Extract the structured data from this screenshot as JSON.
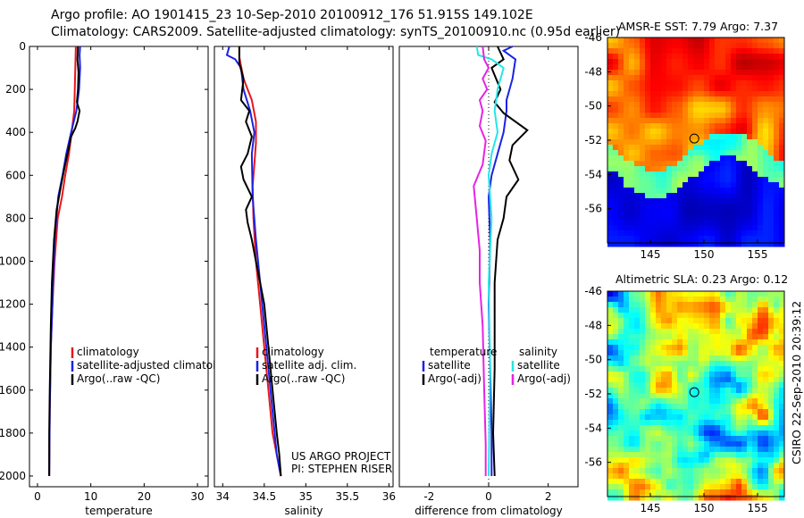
{
  "header": {
    "line1": "Argo profile: AO 1901415_23 10-Sep-2010 20100912_176 51.915S 149.102E",
    "line2": "Climatology: CARS2009. Satellite-adjusted climatology: synTS_20100910.nc (0.95d earlier)"
  },
  "credit": "CSIRO 22-Sep-2010 20:39:12",
  "colors": {
    "red": "#e8161a",
    "blue": "#1a22e6",
    "black": "#000000",
    "cyan": "#25e6e6",
    "magenta": "#e623e6"
  },
  "chart_data": [
    {
      "type": "line",
      "xlabel": "temperature",
      "xticks": [
        0,
        10,
        20,
        30
      ],
      "yticks": [
        0,
        200,
        400,
        600,
        800,
        1000,
        1200,
        1400,
        1600,
        1800,
        2000
      ],
      "xlim": [
        -1.5,
        32
      ],
      "ylim": [
        2050,
        0
      ],
      "legend": [
        "climatology",
        "satellite-adjusted climatology",
        "Argo(..raw -QC)"
      ],
      "series": [
        {
          "name": "climatology",
          "color": "red",
          "x": [
            7.2,
            7.1,
            7.0,
            6.9,
            6.4,
            5.9,
            5.2,
            4.6,
            3.8,
            3.2,
            2.8,
            2.5,
            2.3,
            2.2
          ],
          "y": [
            0,
            100,
            200,
            300,
            400,
            500,
            600,
            700,
            800,
            1000,
            1200,
            1400,
            1700,
            2000
          ]
        },
        {
          "name": "satellite-adjusted climatology",
          "color": "blue",
          "x": [
            8.0,
            7.9,
            8.0,
            7.8,
            7.3,
            6.3,
            5.4,
            4.7,
            3.9,
            3.2,
            2.8,
            2.5,
            2.3,
            2.2
          ],
          "y": [
            0,
            40,
            100,
            200,
            300,
            400,
            500,
            600,
            700,
            900,
            1200,
            1400,
            1700,
            2000
          ]
        },
        {
          "name": "Argo(..raw -QC)",
          "color": "black",
          "x": [
            7.6,
            7.5,
            7.7,
            7.6,
            7.4,
            7.9,
            7.5,
            7.1,
            6.3,
            5.8,
            5.1,
            4.4,
            3.6,
            3.1,
            2.7,
            2.5,
            2.3,
            2.2,
            2.2
          ],
          "y": [
            0,
            60,
            120,
            200,
            260,
            300,
            350,
            380,
            420,
            480,
            560,
            650,
            760,
            900,
            1100,
            1300,
            1600,
            1800,
            2000
          ]
        }
      ]
    },
    {
      "type": "line",
      "xlabel": "salinity",
      "xticks": [
        34,
        34.5,
        35,
        35.5,
        36
      ],
      "yticks": [],
      "xlim": [
        33.9,
        36.05
      ],
      "ylim": [
        2050,
        0
      ],
      "legend": [
        "climatology",
        "satellite adj. clim.",
        "Argo(..raw -QC)"
      ],
      "annotation": [
        "US ARGO PROJECT",
        "PI: STEPHEN RISER"
      ],
      "series": [
        {
          "name": "climatology",
          "color": "red",
          "x": [
            34.2,
            34.2,
            34.25,
            34.35,
            34.4,
            34.4,
            34.38,
            34.36,
            34.37,
            34.4,
            34.45,
            34.5,
            34.55,
            34.6,
            34.65,
            34.7
          ],
          "y": [
            0,
            50,
            150,
            250,
            350,
            450,
            550,
            650,
            800,
            1000,
            1200,
            1400,
            1600,
            1800,
            1900,
            2000
          ]
        },
        {
          "name": "satellite adj. clim.",
          "color": "blue",
          "x": [
            34.08,
            34.05,
            34.15,
            34.22,
            34.25,
            34.33,
            34.38,
            34.35,
            34.36,
            34.4,
            34.45,
            34.5,
            34.55,
            34.6,
            34.65,
            34.7
          ],
          "y": [
            0,
            40,
            60,
            100,
            200,
            300,
            400,
            500,
            700,
            900,
            1100,
            1300,
            1500,
            1700,
            1900,
            2000
          ]
        },
        {
          "name": "Argo(..raw -QC)",
          "color": "black",
          "x": [
            34.2,
            34.2,
            34.25,
            34.22,
            34.32,
            34.28,
            34.35,
            34.3,
            34.22,
            34.25,
            34.35,
            34.28,
            34.3,
            34.35,
            34.4,
            34.45,
            34.5,
            34.55,
            34.6,
            34.65,
            34.68,
            34.7
          ],
          "y": [
            0,
            80,
            150,
            250,
            300,
            350,
            420,
            500,
            560,
            620,
            700,
            760,
            820,
            900,
            1000,
            1100,
            1200,
            1400,
            1600,
            1800,
            1900,
            2000
          ]
        }
      ]
    },
    {
      "type": "line",
      "xlabel": "difference from climatology",
      "xticks": [
        -2,
        0,
        2
      ],
      "yticks": [],
      "xlim": [
        -3,
        3
      ],
      "ylim": [
        2050,
        0
      ],
      "legend": [
        "temperature",
        "satellite",
        "Argo(-adj)",
        "salinity",
        "satellite",
        "Argo(-adj)"
      ],
      "series": [
        {
          "name": "temperature satellite",
          "color": "blue",
          "x": [
            0.8,
            0.5,
            0.9,
            0.8,
            0.6,
            0.6,
            0.5,
            0.3,
            0.1,
            0.0,
            0.05,
            0.0,
            0.05,
            0.1,
            0.1
          ],
          "y": [
            0,
            20,
            60,
            150,
            250,
            300,
            400,
            500,
            600,
            700,
            900,
            1200,
            1500,
            1800,
            2000
          ]
        },
        {
          "name": "temperature Argo(-adj)",
          "color": "black",
          "x": [
            0.3,
            0.5,
            0.1,
            0.4,
            0.2,
            0.5,
            1.3,
            0.8,
            0.7,
            1.0,
            0.6,
            0.5,
            0.3,
            0.2,
            0.2,
            0.2,
            0.15,
            0.2
          ],
          "y": [
            0,
            60,
            100,
            200,
            260,
            310,
            390,
            460,
            530,
            620,
            700,
            800,
            900,
            1100,
            1300,
            1500,
            1800,
            2000
          ]
        },
        {
          "name": "salinity satellite",
          "color": "cyan",
          "x": [
            -0.4,
            -0.35,
            0.1,
            0.5,
            0.3,
            0.2,
            0.3,
            0.1,
            0.0,
            0.1,
            0.0,
            0.05,
            0.0
          ],
          "y": [
            0,
            40,
            60,
            100,
            200,
            300,
            400,
            500,
            600,
            800,
            1100,
            1500,
            2000
          ]
        },
        {
          "name": "salinity Argo(-adj)",
          "color": "magenta",
          "x": [
            -0.2,
            -0.15,
            0.0,
            -0.2,
            -0.05,
            -0.3,
            -0.2,
            -0.3,
            -0.1,
            -0.2,
            -0.5,
            -0.4,
            -0.3,
            -0.3,
            -0.2,
            -0.15,
            -0.1,
            -0.1
          ],
          "y": [
            0,
            60,
            100,
            150,
            200,
            250,
            300,
            370,
            440,
            550,
            650,
            800,
            950,
            1100,
            1300,
            1600,
            1850,
            2000
          ]
        }
      ]
    },
    {
      "type": "heatmap",
      "title": "AMSR-E SST: 7.79 Argo: 7.37",
      "xticks": [
        145,
        150,
        155
      ],
      "yticks": [
        -46,
        -48,
        -50,
        -52,
        -54,
        -56
      ],
      "xlim": [
        141,
        157.5
      ],
      "ylim": [
        -58,
        -46
      ],
      "marker": [
        149.1,
        -51.9
      ]
    },
    {
      "type": "heatmap",
      "title": "Altimetric SLA: 0.23 Argo: 0.12",
      "xticks": [
        145,
        150,
        155
      ],
      "yticks": [
        -46,
        -48,
        -50,
        -52,
        -54,
        -56
      ],
      "xlim": [
        141,
        157.5
      ],
      "ylim": [
        -58,
        -46
      ],
      "marker": [
        149.1,
        -51.9
      ]
    }
  ]
}
